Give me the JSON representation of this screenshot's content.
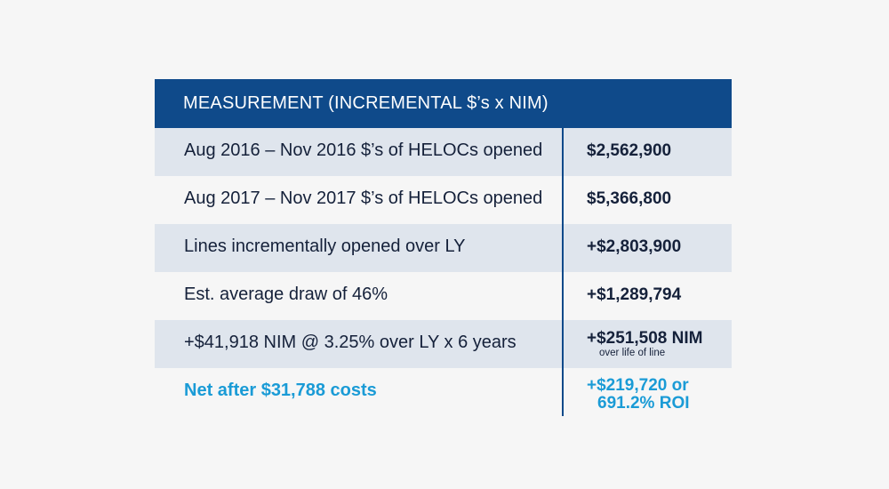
{
  "table": {
    "header": "MEASUREMENT (INCREMENTAL $’s x NIM)",
    "rows": [
      {
        "label": "Aug 2016 – Nov 2016 $’s of HELOCs opened",
        "value": "$2,562,900",
        "shaded": true
      },
      {
        "label": "Aug 2017 – Nov 2017 $’s of HELOCs opened",
        "value": "$5,366,800",
        "shaded": false
      },
      {
        "label": "Lines incrementally opened over LY",
        "value": "+$2,803,900",
        "shaded": true
      },
      {
        "label": "Est. average draw of 46%",
        "value": "+$1,289,794",
        "shaded": false
      },
      {
        "label": "+$41,918 NIM @ 3.25% over LY x 6 years",
        "value": "+$251,508 NIM",
        "sub": "over life of line",
        "shaded": true
      }
    ],
    "total": {
      "label": "Net after $31,788 costs",
      "value_line1": "+$219,720 or",
      "value_line2": "691.2% ROI"
    }
  },
  "colors": {
    "header_bg": "#0f4a8a",
    "row_shade": "#dfe5ed",
    "accent": "#1a9bd6",
    "page_bg": "#f6f6f6"
  }
}
